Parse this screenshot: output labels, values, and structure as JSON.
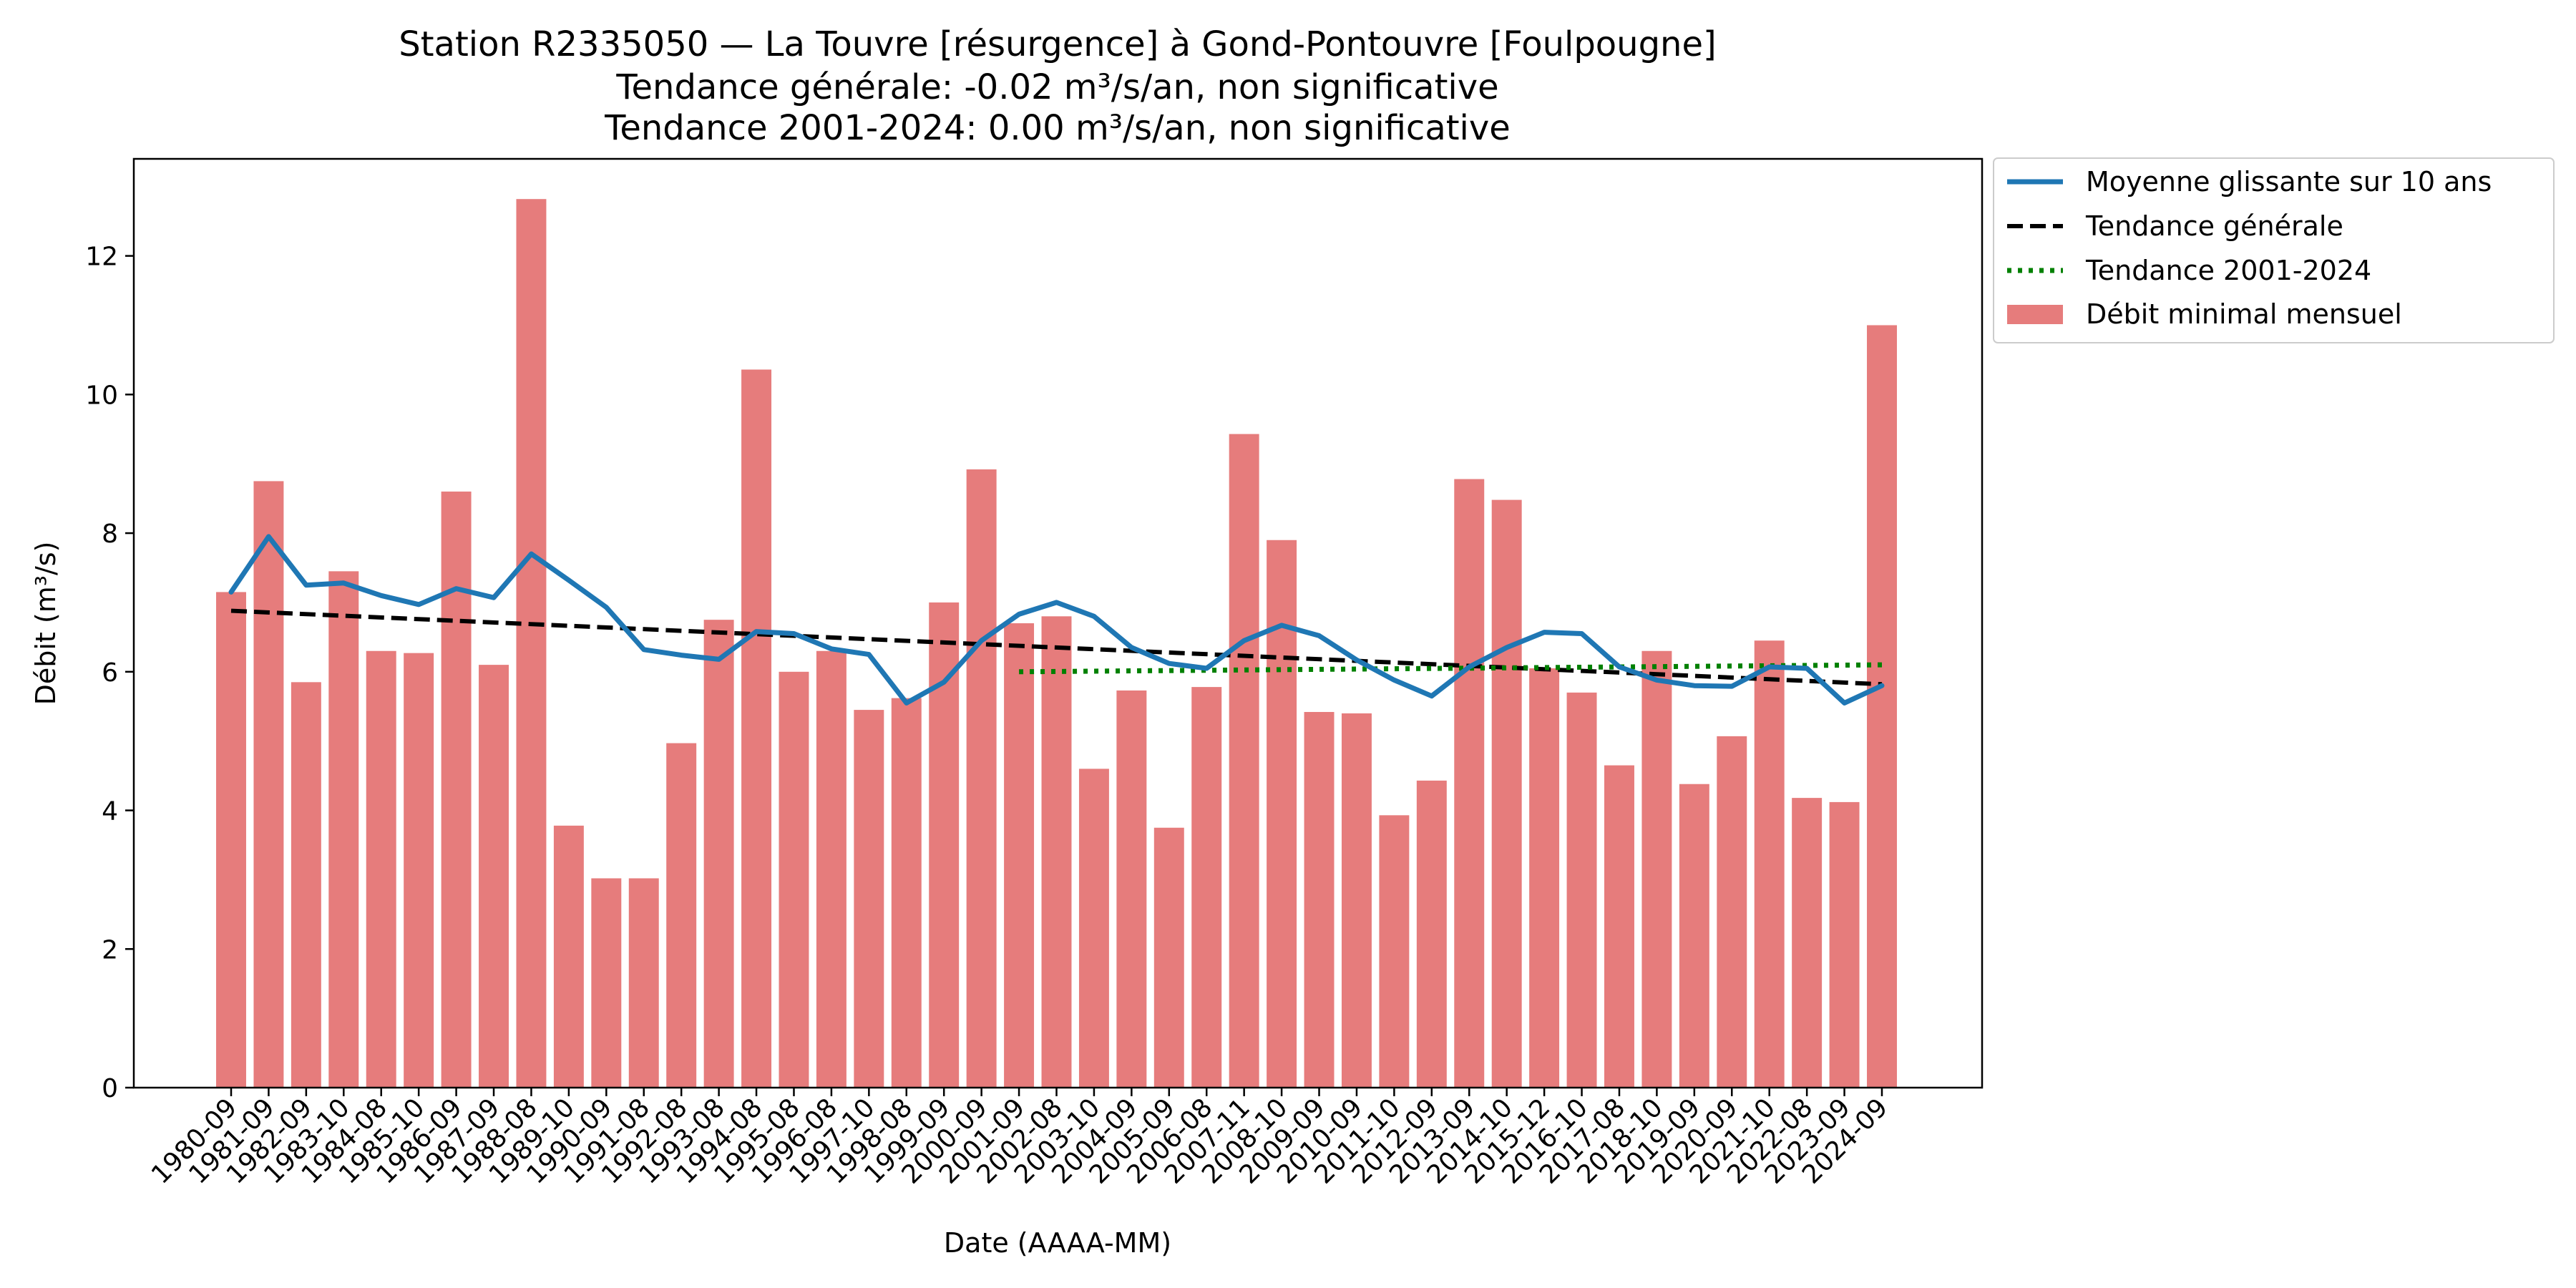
{
  "chart_data": {
    "type": "bar",
    "title_lines": [
      "Station R2335050 — La Touvre [résurgence] à Gond-Pontouvre [Foulpougne]",
      "Tendance générale: -0.02 m³/s/an, non significative",
      "Tendance 2001-2024: 0.00 m³/s/an, non significative"
    ],
    "xlabel": "Date (AAAA-MM)",
    "ylabel": "Débit (m³/s)",
    "ylim": [
      0,
      13.4
    ],
    "yticks": [
      0,
      2,
      4,
      6,
      8,
      10,
      12
    ],
    "categories": [
      "1980-09",
      "1981-09",
      "1982-09",
      "1983-10",
      "1984-08",
      "1985-10",
      "1986-09",
      "1987-09",
      "1988-08",
      "1989-10",
      "1990-09",
      "1991-08",
      "1992-08",
      "1993-08",
      "1994-08",
      "1995-08",
      "1996-08",
      "1997-10",
      "1998-08",
      "1999-09",
      "2000-09",
      "2001-09",
      "2002-08",
      "2003-10",
      "2004-09",
      "2005-09",
      "2006-08",
      "2007-11",
      "2008-10",
      "2009-09",
      "2010-09",
      "2011-10",
      "2012-09",
      "2013-09",
      "2014-10",
      "2015-12",
      "2016-10",
      "2017-08",
      "2018-10",
      "2019-09",
      "2020-09",
      "2021-10",
      "2022-08",
      "2023-09",
      "2024-09"
    ],
    "series": [
      {
        "name": "Débit minimal mensuel",
        "kind": "bar",
        "color": "#e67c7c",
        "values": [
          7.15,
          8.75,
          5.85,
          7.45,
          6.3,
          6.27,
          8.6,
          6.1,
          12.82,
          3.78,
          3.02,
          3.02,
          4.97,
          6.75,
          10.36,
          6.0,
          6.3,
          5.45,
          5.62,
          7.0,
          8.92,
          6.7,
          6.8,
          4.6,
          5.73,
          3.75,
          5.78,
          9.43,
          7.9,
          5.42,
          5.4,
          3.93,
          4.43,
          8.78,
          8.48,
          6.05,
          5.7,
          4.65,
          6.3,
          4.38,
          5.07,
          6.45,
          4.18,
          4.12,
          11.0
        ]
      },
      {
        "name": "Moyenne glissante sur 10 ans",
        "kind": "line",
        "color": "#1f77b4",
        "values": [
          7.15,
          7.95,
          7.25,
          7.28,
          7.1,
          6.97,
          7.2,
          7.07,
          7.7,
          7.32,
          6.93,
          6.32,
          6.24,
          6.18,
          6.58,
          6.55,
          6.33,
          6.25,
          5.55,
          5.85,
          6.45,
          6.83,
          7.0,
          6.8,
          6.35,
          6.12,
          6.05,
          6.45,
          6.67,
          6.52,
          6.17,
          5.88,
          5.65,
          6.07,
          6.35,
          6.57,
          6.55,
          6.07,
          5.88,
          5.8,
          5.79,
          6.07,
          6.05,
          5.55,
          5.8
        ]
      },
      {
        "name": "Tendance générale",
        "kind": "trend",
        "style": "dashed",
        "color": "#000000",
        "start": {
          "x": "1980-09",
          "y": 6.88
        },
        "end": {
          "x": "2024-09",
          "y": 5.82
        }
      },
      {
        "name": "Tendance 2001-2024",
        "kind": "trend",
        "style": "dotted",
        "color": "#008000",
        "start": {
          "x": "2001-09",
          "y": 6.0
        },
        "end": {
          "x": "2024-09",
          "y": 6.1
        }
      }
    ],
    "legend": {
      "placement": "outside-top-right",
      "order": [
        "Moyenne glissante sur 10 ans",
        "Tendance générale",
        "Tendance 2001-2024",
        "Débit minimal mensuel"
      ]
    },
    "grid": false
  }
}
